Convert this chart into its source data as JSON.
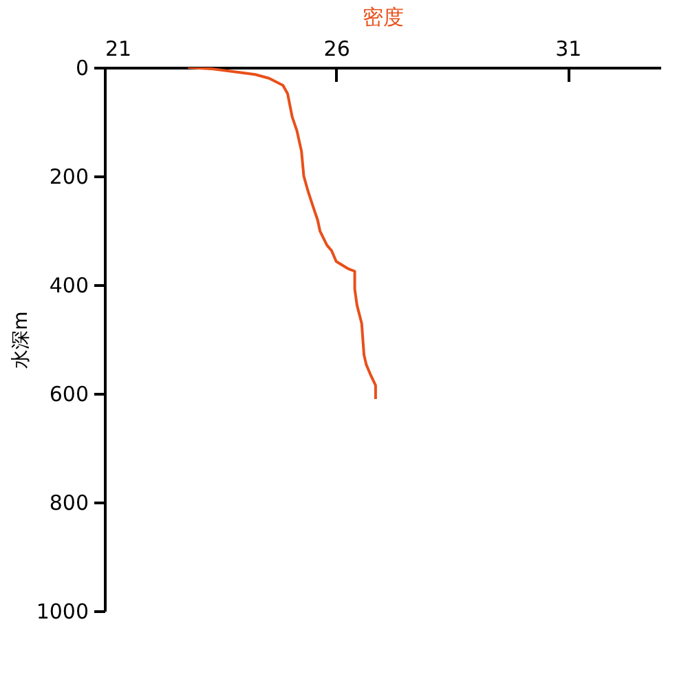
{
  "chart_data": {
    "type": "line",
    "xlabel": "密度",
    "ylabel": "水深m",
    "xlim": [
      21,
      33
    ],
    "xticks": [
      21,
      26,
      31
    ],
    "ylim": [
      1000,
      0
    ],
    "yticks": [
      0,
      200,
      400,
      600,
      800,
      1000
    ],
    "grid": false,
    "series": [
      {
        "color": "#e8501a",
        "x": [
          22.8,
          23.35,
          23.8,
          24.25,
          24.55,
          24.85,
          24.95,
          25.05,
          25.15,
          25.25,
          25.3,
          25.4,
          25.5,
          25.6,
          25.65,
          25.8,
          25.9,
          26.0,
          26.25,
          26.4,
          26.4,
          26.45,
          26.55,
          26.6,
          26.65,
          26.75,
          26.85,
          26.85
        ],
        "values": [
          0,
          3,
          8,
          13,
          20,
          33,
          48,
          91,
          116,
          154,
          200,
          230,
          256,
          281,
          301,
          327,
          337,
          357,
          370,
          375,
          408,
          438,
          471,
          529,
          547,
          567,
          585,
          610
        ]
      }
    ]
  }
}
